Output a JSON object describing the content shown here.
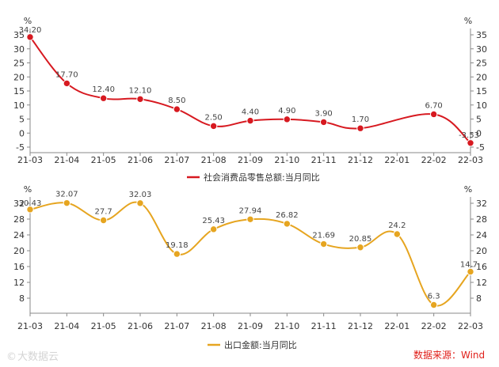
{
  "chart_data": [
    {
      "type": "line",
      "categories": [
        "21-03",
        "21-04",
        "21-05",
        "21-06",
        "21-07",
        "21-08",
        "21-09",
        "21-10",
        "21-11",
        "21-12",
        "22-01",
        "22-02",
        "22-03"
      ],
      "series": [
        {
          "name": "社会消费品零售总额:当月同比",
          "values": [
            34.2,
            17.7,
            12.4,
            12.1,
            8.5,
            2.5,
            4.4,
            4.9,
            3.9,
            1.7,
            null,
            6.7,
            -3.53
          ],
          "labels": [
            "34.20",
            "17.70",
            "12.40",
            "12.10",
            "8.50",
            "2.50",
            "4.40",
            "4.90",
            "3.90",
            "1.70",
            "",
            "6.70",
            "-3.53"
          ],
          "color": "#d71920"
        }
      ],
      "ylim": [
        -5,
        35
      ],
      "yticks": [
        "-5",
        "0",
        "5",
        "10",
        "15",
        "20",
        "25",
        "30",
        "35"
      ],
      "ylabel_left": "%",
      "ylabel_right": "%",
      "grid": false,
      "legend_position": "bottom"
    },
    {
      "type": "line",
      "categories": [
        "21-03",
        "21-04",
        "21-05",
        "21-06",
        "21-07",
        "21-08",
        "21-09",
        "21-10",
        "21-11",
        "21-12",
        "22-01",
        "22-02",
        "22-03"
      ],
      "series": [
        {
          "name": "出口金额:当月同比",
          "values": [
            30.43,
            32.07,
            27.7,
            32.03,
            19.18,
            25.43,
            27.94,
            26.82,
            21.69,
            20.85,
            24.2,
            6.3,
            14.7
          ],
          "labels": [
            "30.43",
            "32.07",
            "27.7",
            "32.03",
            "19.18",
            "25.43",
            "27.94",
            "26.82",
            "21.69",
            "20.85",
            "24.2",
            "6.3",
            "14.7"
          ],
          "color": "#e6a520"
        }
      ],
      "ylim": [
        4,
        32
      ],
      "yticks": [
        "8",
        "12",
        "16",
        "20",
        "24",
        "28",
        "32"
      ],
      "ylabel_left": "%",
      "ylabel_right": "%",
      "grid": false,
      "legend_position": "bottom"
    }
  ],
  "source_text": "数据来源：Wind",
  "watermark_text": "大数据云"
}
